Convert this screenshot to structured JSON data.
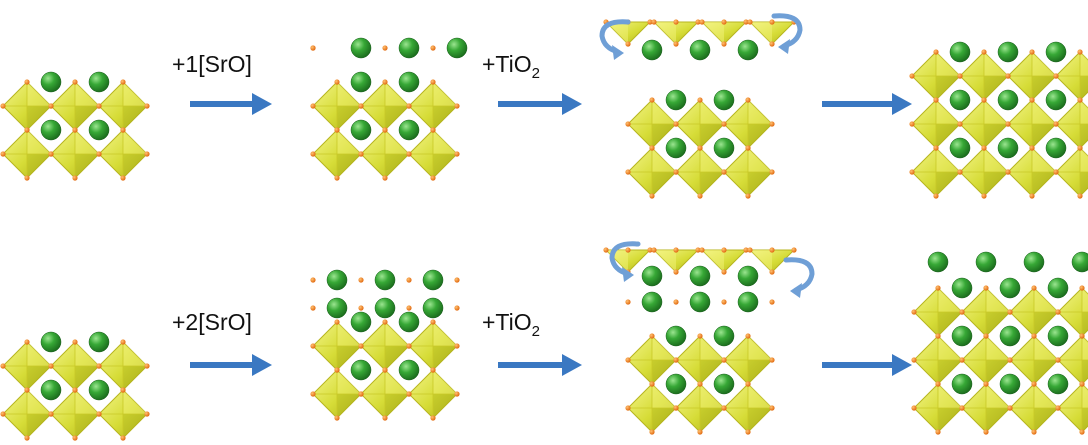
{
  "rows": [
    {
      "steps": [
        {
          "prefix": "+1[SrO]",
          "subscript": ""
        },
        {
          "prefix": "+TiO",
          "subscript": "2"
        }
      ]
    },
    {
      "steps": [
        {
          "prefix": "+2[SrO]",
          "subscript": ""
        },
        {
          "prefix": "+TiO",
          "subscript": "2"
        }
      ]
    }
  ],
  "colors": {
    "octahedron_fill": "#d8df3c",
    "octahedron_edge": "#b7b51e",
    "octahedron_highlight": "#f2f27a",
    "sr_atom": "#2c9a2c",
    "sr_atom_highlight": "#7fd67a",
    "oxygen_atom": "#f07a1a",
    "arrow": "#3a78c2",
    "swap_arrow": "#6f9fd6"
  },
  "icons": [
    "sro-layer",
    "tio2-layer",
    "reaction-arrow",
    "layer-swap-arrow"
  ]
}
